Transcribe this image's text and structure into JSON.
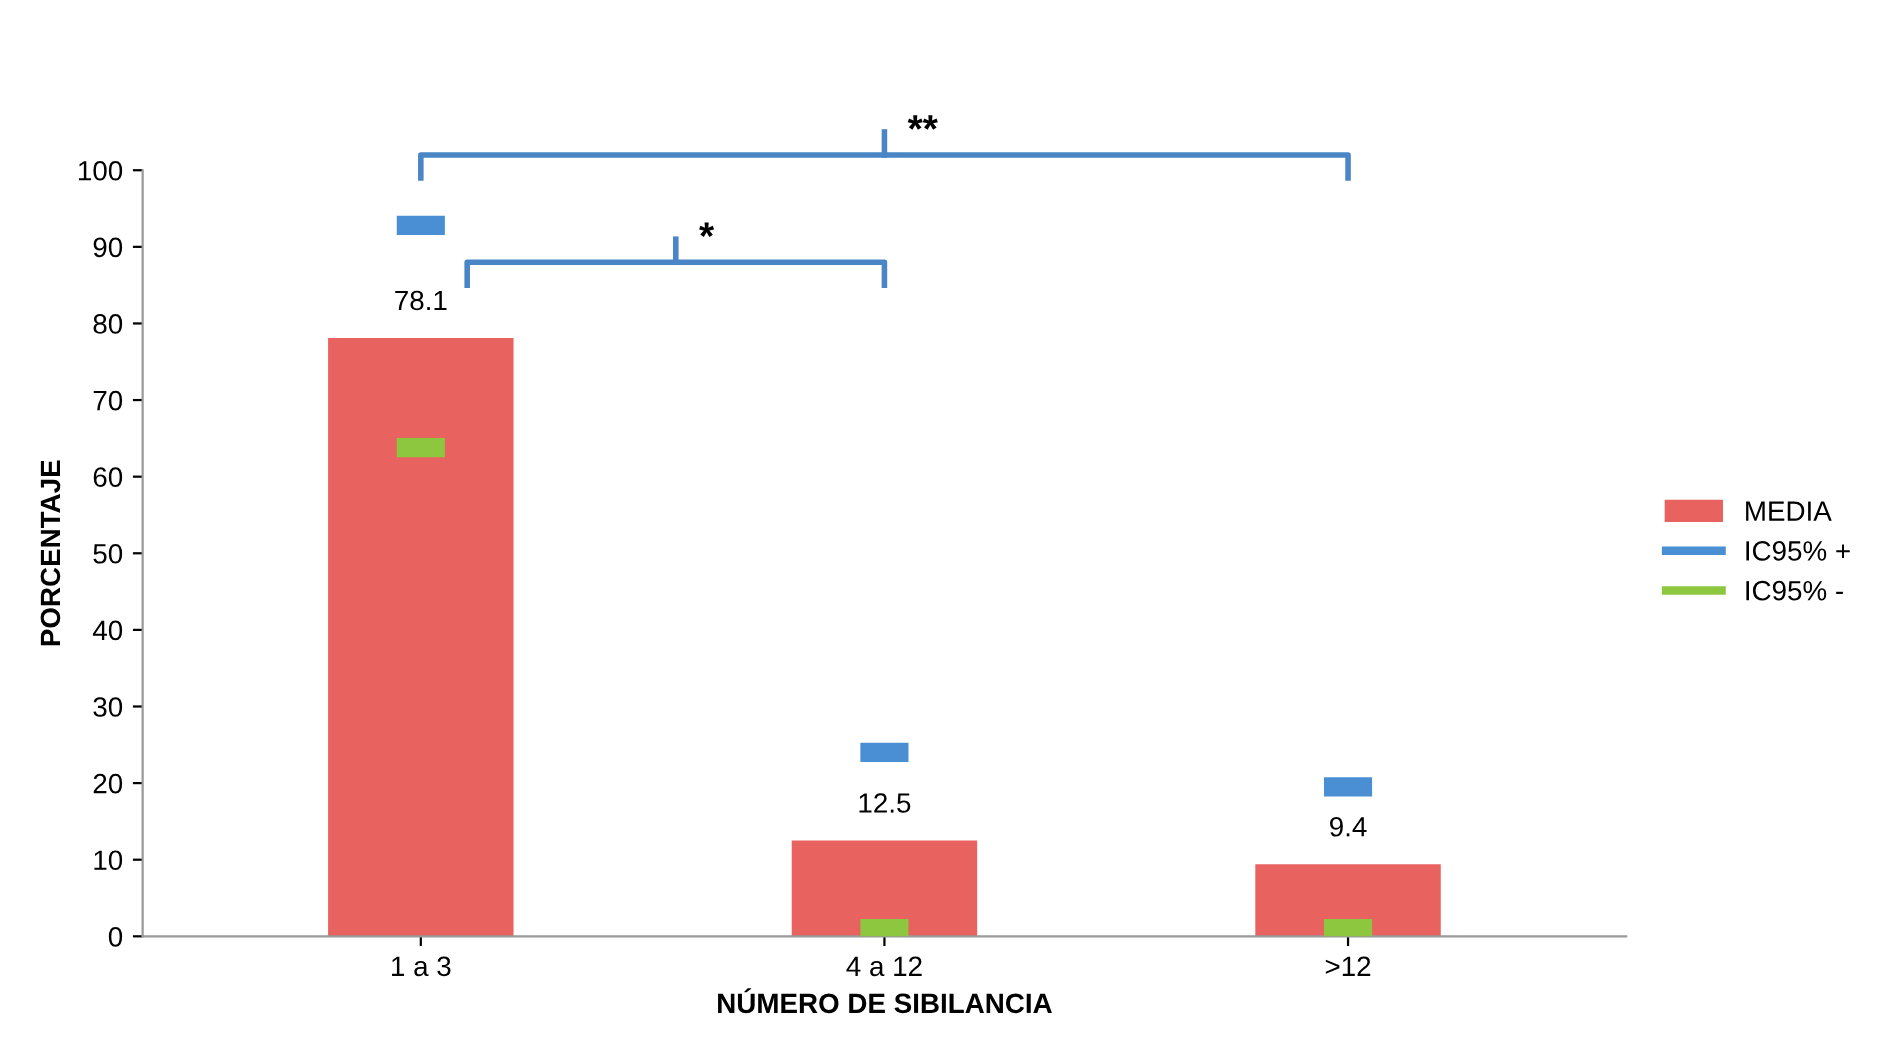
{
  "chart_data": {
    "type": "bar",
    "xlabel": "NÚMERO DE SIBILANCIA",
    "ylabel": "PORCENTAJE",
    "categories": [
      "1 a 3",
      "4 a 12",
      ">12"
    ],
    "series": [
      {
        "name": "MEDIA",
        "type": "bar",
        "color": "#e8625f",
        "values": [
          78.1,
          12.5,
          9.4
        ],
        "data_labels": true
      },
      {
        "name": "IC95% +",
        "type": "scatter",
        "color": "#4a8fd4",
        "values": [
          92.8,
          24.0,
          19.5
        ]
      },
      {
        "name": "IC95% -",
        "type": "scatter",
        "color": "#8dc63f",
        "values": [
          63.8,
          1.0,
          1.0
        ]
      }
    ],
    "annotations": [
      "*",
      "**"
    ],
    "ylim": [
      0,
      100
    ],
    "yticks": [
      0,
      10,
      20,
      30,
      40,
      50,
      60,
      70,
      80,
      90,
      100
    ],
    "grid": false,
    "legend": "right"
  }
}
